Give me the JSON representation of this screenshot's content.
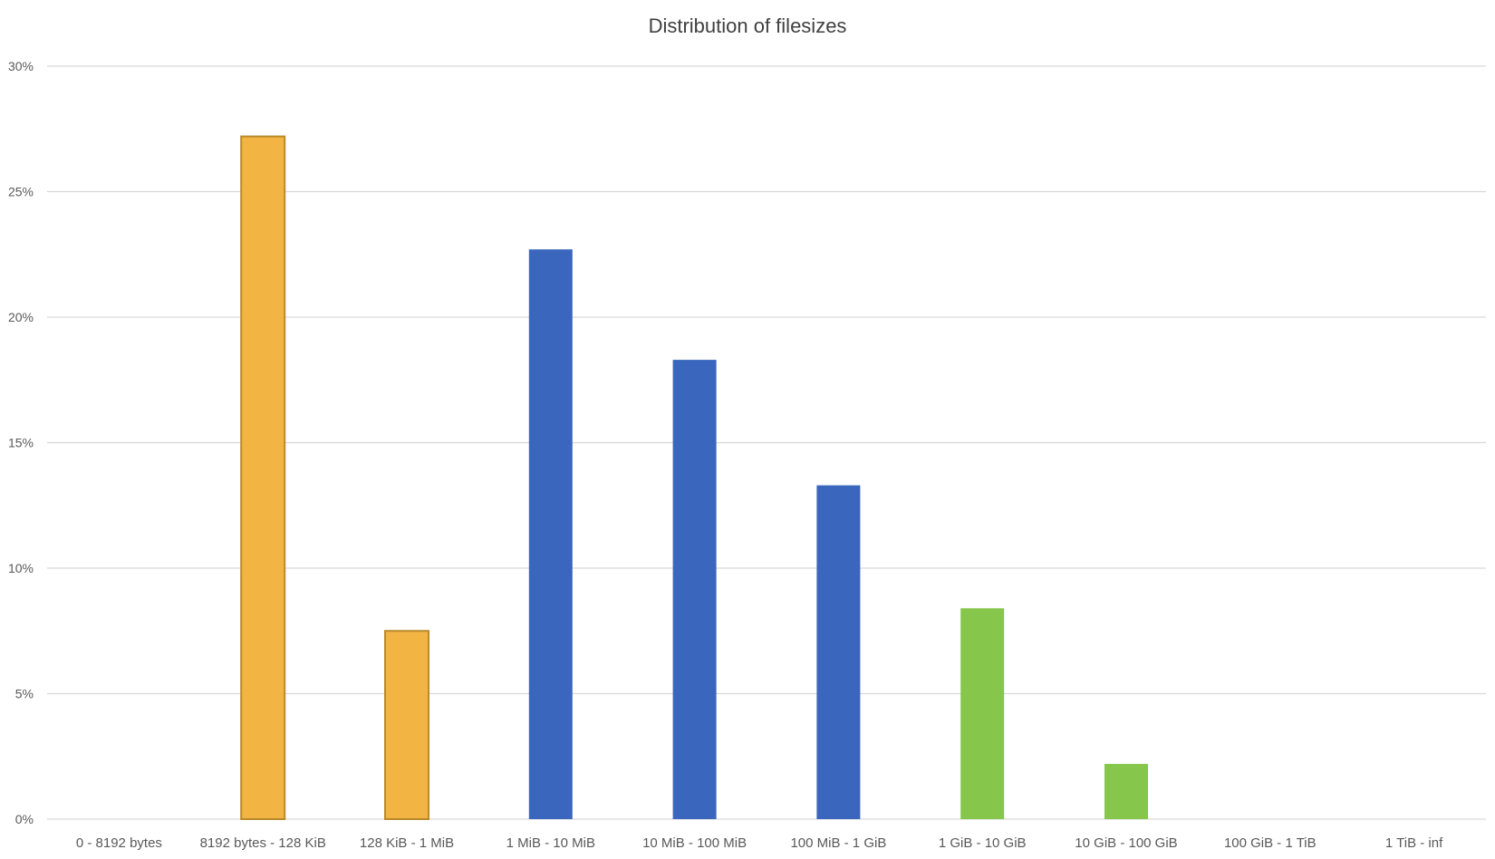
{
  "chart_data": {
    "type": "bar",
    "title": "Distribution of filesizes",
    "xlabel": "",
    "ylabel": "",
    "categories": [
      "0 - 8192 bytes",
      "8192 bytes - 128 KiB",
      "128 KiB - 1 MiB",
      "1 MiB - 10 MiB",
      "10 MiB - 100 MiB",
      "100 MiB - 1 GiB",
      "1 GiB - 10 GiB",
      "10 GiB - 100 GiB",
      "100 GiB - 1 TiB",
      "1 TiB - inf"
    ],
    "values": [
      0,
      27.2,
      7.5,
      22.7,
      18.3,
      13.3,
      8.4,
      2.2,
      0,
      0
    ],
    "colors": [
      "#F2B544",
      "#F2B544",
      "#F2B544",
      "#3A66BD",
      "#3A66BD",
      "#3A66BD",
      "#86C64A",
      "#86C64A",
      "#86C64A",
      "#86C64A"
    ],
    "ylim": [
      0,
      30
    ],
    "yticks": [
      0,
      5,
      10,
      15,
      20,
      25,
      30
    ],
    "ytick_labels": [
      "0%",
      "5%",
      "10%",
      "15%",
      "20%",
      "25%",
      "30%"
    ],
    "grid": true,
    "legend": "none"
  }
}
